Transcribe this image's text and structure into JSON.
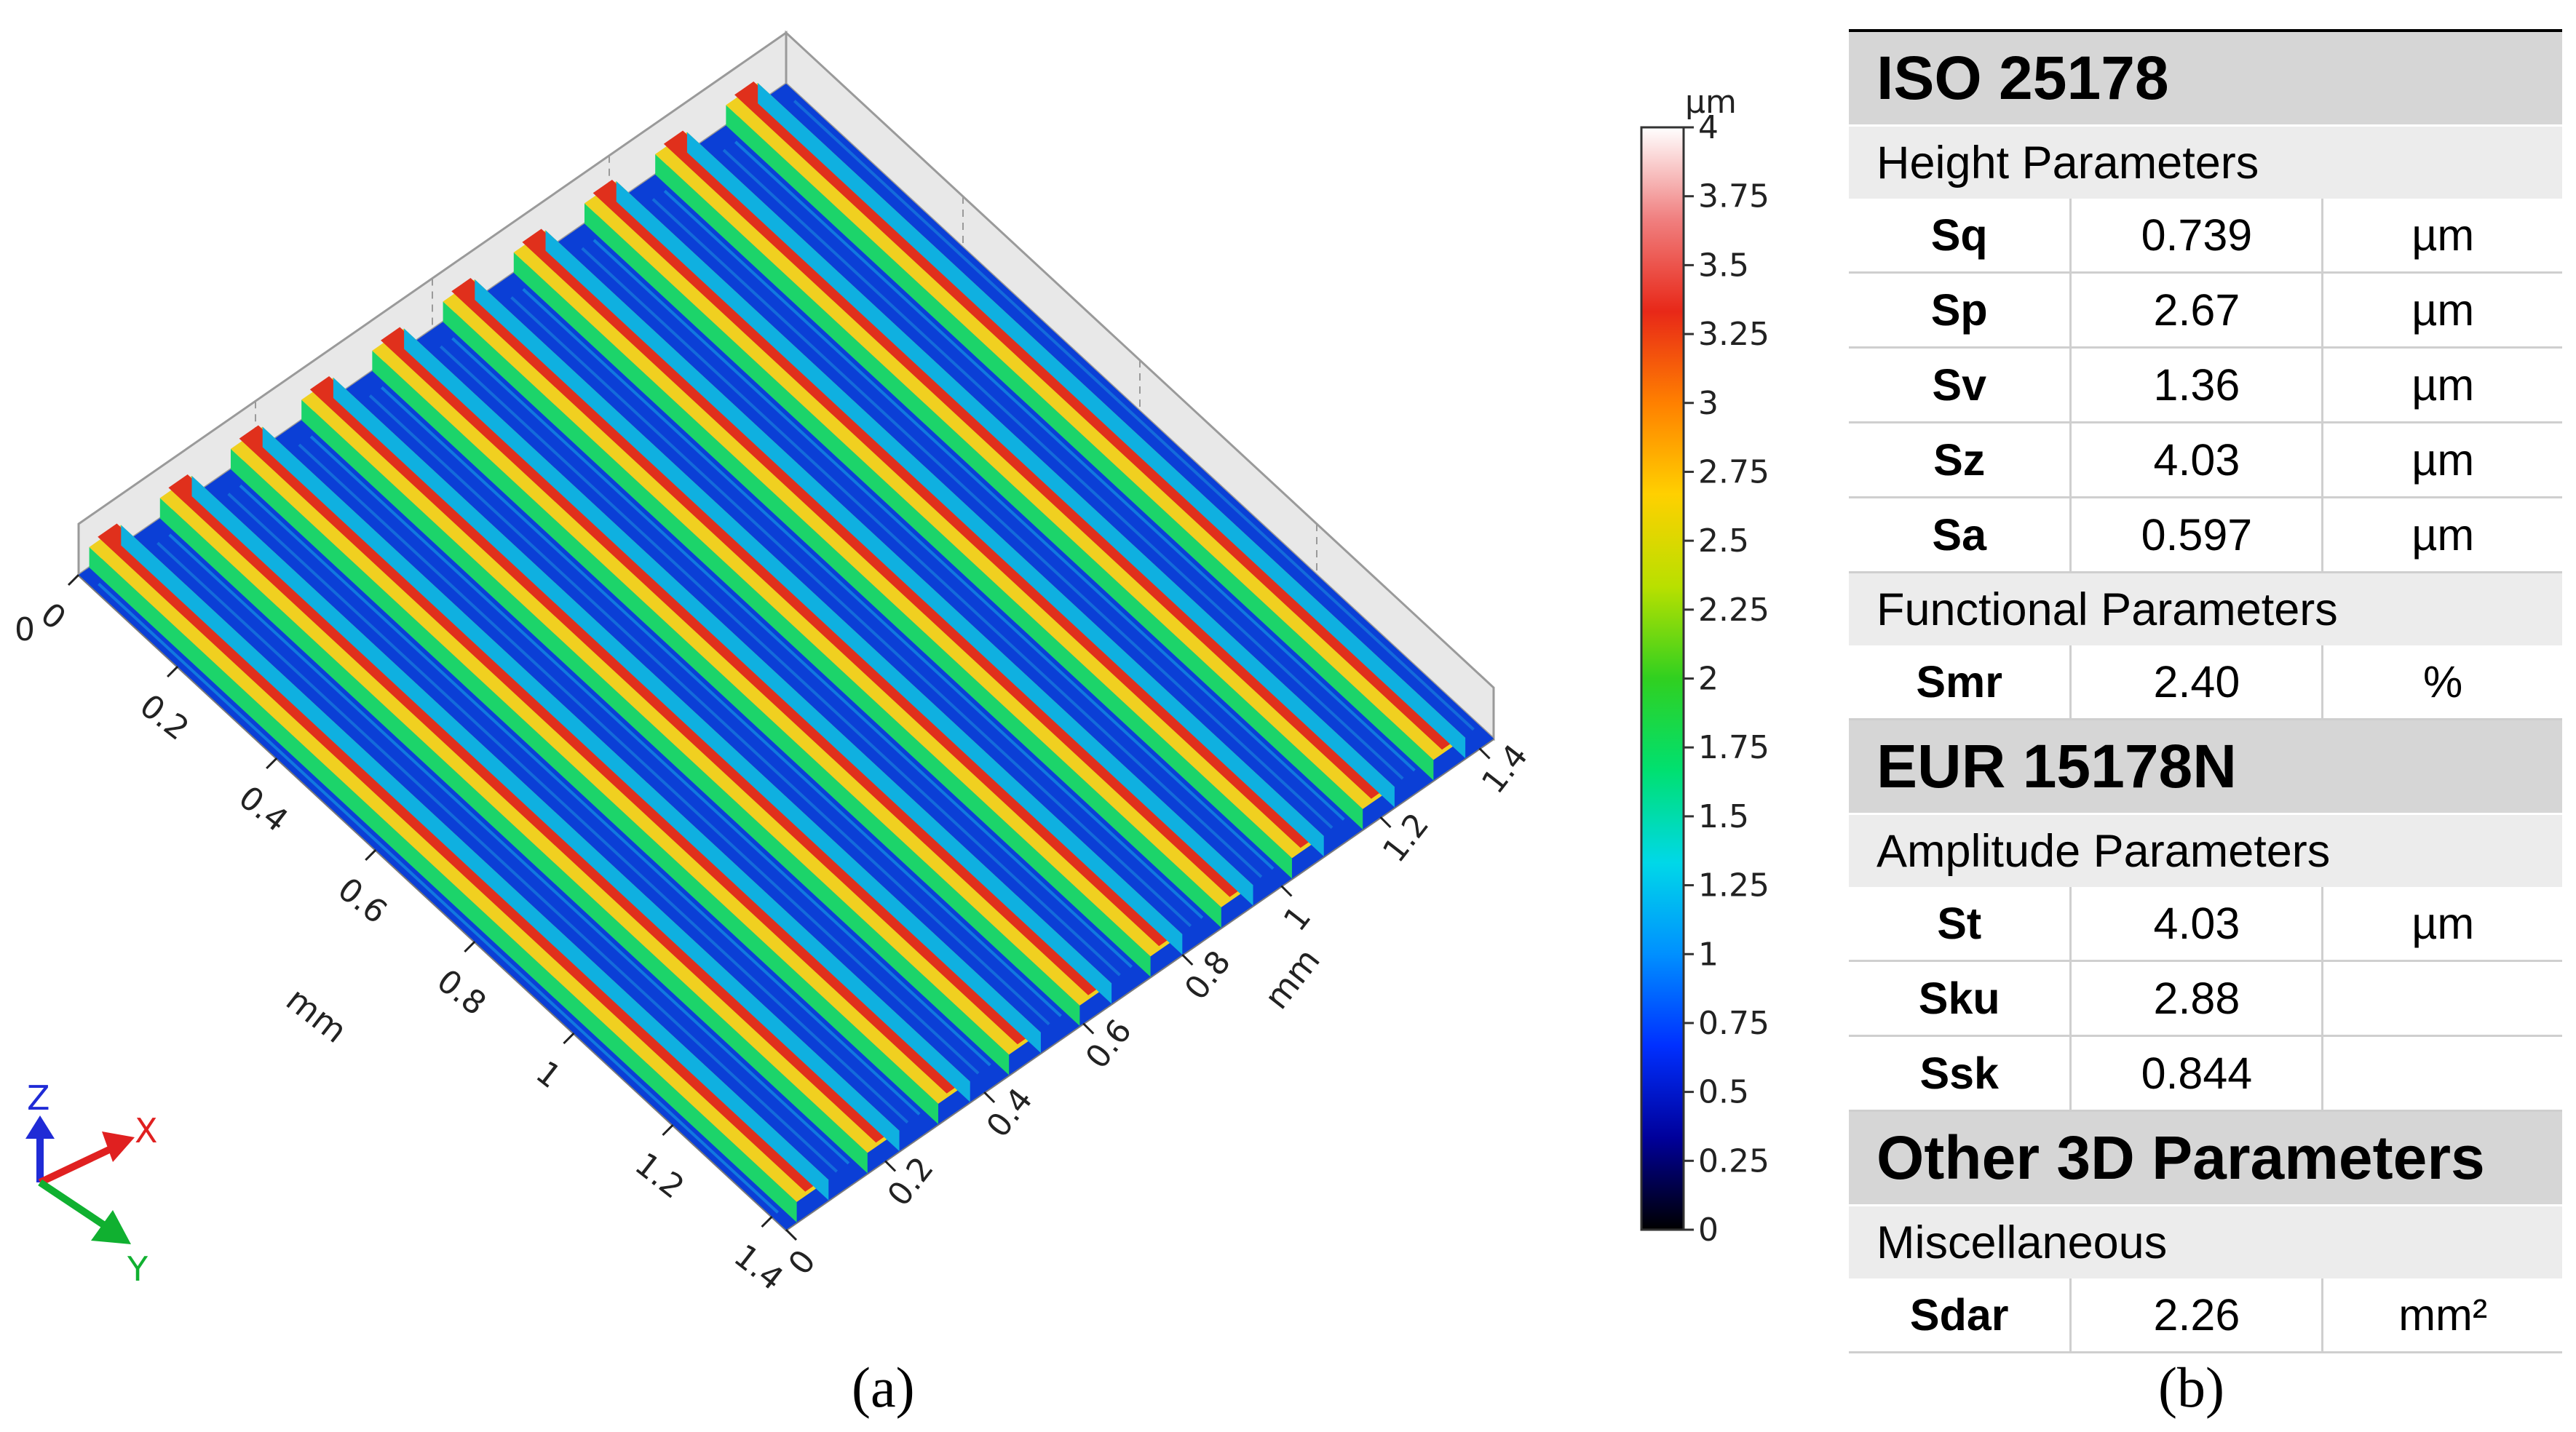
{
  "panel_a": {
    "caption": "(a)",
    "x_axis_label": "mm",
    "y_axis_label": "mm",
    "x_ticks": [
      "0",
      "0.2",
      "0.4",
      "0.6",
      "0.8",
      "1",
      "1.2",
      "1.4"
    ],
    "y_ticks": [
      "0",
      "0.2",
      "0.4",
      "0.6",
      "0.8",
      "1",
      "1.2",
      "1.4"
    ],
    "z_tick_label": "0",
    "colorbar": {
      "unit": "µm",
      "ticks": [
        "0",
        "0.25",
        "0.5",
        "0.75",
        "1",
        "1.25",
        "1.5",
        "1.75",
        "2",
        "2.25",
        "2.5",
        "2.75",
        "3",
        "3.25",
        "3.5",
        "3.75",
        "4"
      ],
      "colors": [
        "#000000",
        "#00009a",
        "#0030ff",
        "#0090ff",
        "#00d8e8",
        "#00e070",
        "#30d020",
        "#b8e000",
        "#ffd000",
        "#ff8000",
        "#e82818",
        "#f08080",
        "#ffffff"
      ]
    },
    "orientation_triad": {
      "z": "Z",
      "x": "X",
      "y": "Y",
      "z_color": "#1f2bd6",
      "x_color": "#e02020",
      "y_color": "#10b030"
    },
    "surface": {
      "ridge_count": 10
    }
  },
  "chart_data": {
    "type": "table",
    "caption": "(b)",
    "sections": [
      {
        "standard": "ISO 25178",
        "groups": [
          {
            "name": "Height Parameters",
            "params": [
              {
                "name": "Sq",
                "value": "0.739",
                "unit": "µm"
              },
              {
                "name": "Sp",
                "value": "2.67",
                "unit": "µm"
              },
              {
                "name": "Sv",
                "value": "1.36",
                "unit": "µm"
              },
              {
                "name": "Sz",
                "value": "4.03",
                "unit": "µm"
              },
              {
                "name": "Sa",
                "value": "0.597",
                "unit": "µm"
              }
            ]
          },
          {
            "name": "Functional Parameters",
            "params": [
              {
                "name": "Smr",
                "value": "2.40",
                "unit": "%"
              }
            ]
          }
        ]
      },
      {
        "standard": "EUR 15178N",
        "groups": [
          {
            "name": "Amplitude Parameters",
            "params": [
              {
                "name": "St",
                "value": "4.03",
                "unit": "µm"
              },
              {
                "name": "Sku",
                "value": "2.88",
                "unit": ""
              },
              {
                "name": "Ssk",
                "value": "0.844",
                "unit": ""
              }
            ]
          }
        ]
      },
      {
        "standard": "Other 3D Parameters",
        "groups": [
          {
            "name": "Miscellaneous",
            "params": [
              {
                "name": "Sdar",
                "value": "2.26",
                "unit": "mm²"
              }
            ]
          }
        ]
      }
    ]
  }
}
